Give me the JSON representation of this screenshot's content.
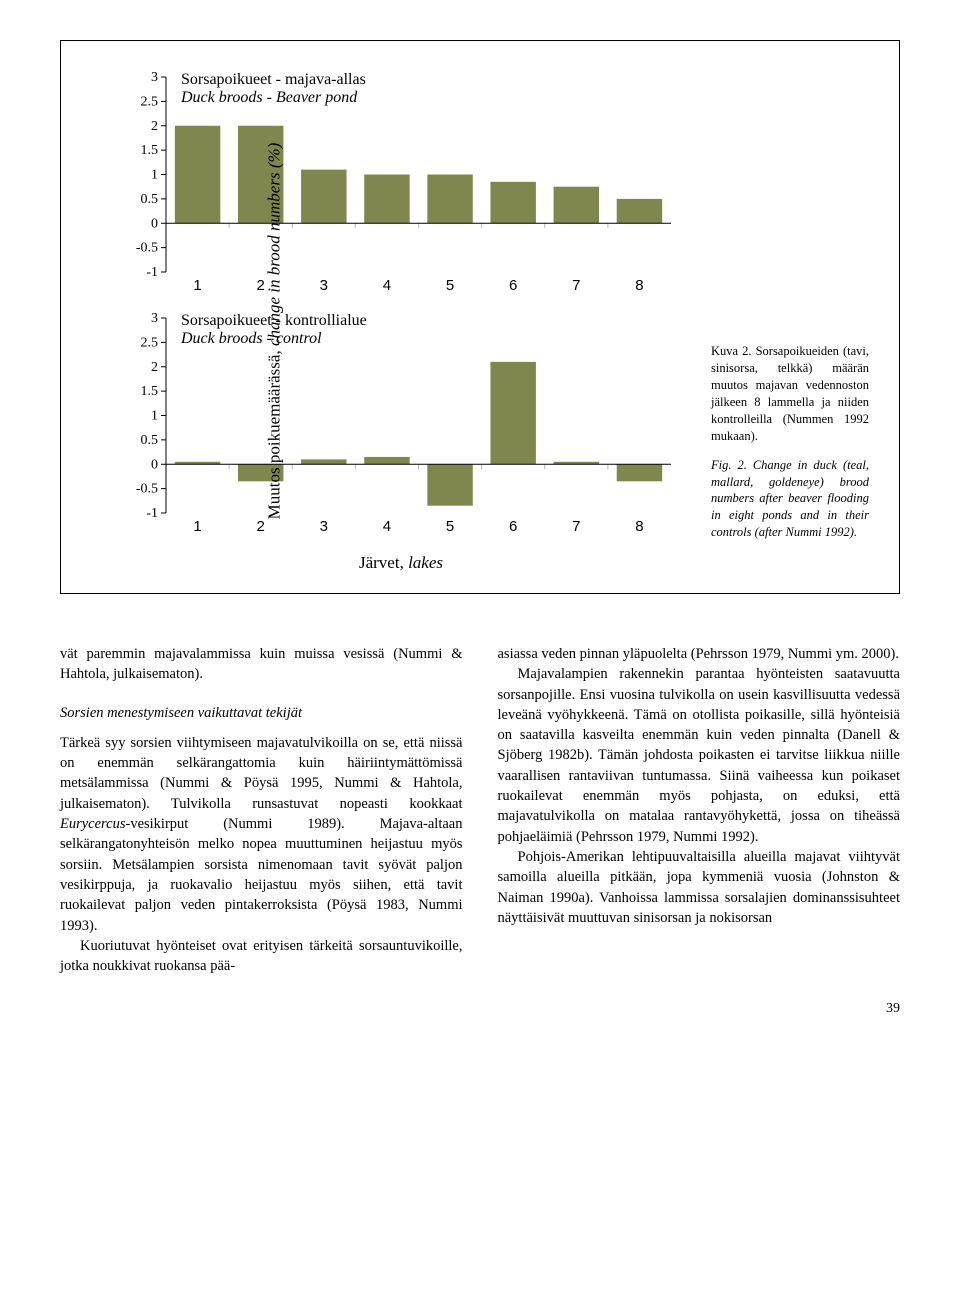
{
  "figure": {
    "ylabel_fi": "Muutos poikuemäärässä, ",
    "ylabel_en": "change in brood numbers (%)",
    "xlabel_fi": "Järvet, ",
    "xlabel_en": "lakes",
    "chart1": {
      "title_fi": "Sorsapoikueet - majava-allas",
      "title_en": "Duck broods - Beaver pond",
      "categories": [
        "1",
        "2",
        "3",
        "4",
        "5",
        "6",
        "7",
        "8"
      ],
      "values": [
        2.0,
        2.0,
        1.1,
        1.0,
        1.0,
        0.85,
        0.75,
        0.5
      ],
      "ylim": [
        -1,
        3
      ],
      "ytick_step": 0.5,
      "bar_color": "#7f874f",
      "axis_color": "#000000",
      "grid_color": "#b9b9b9",
      "background_color": "#ffffff"
    },
    "chart2": {
      "title_fi": "Sorsapoikueet - kontrollialue",
      "title_en": "Duck broods - control",
      "categories": [
        "1",
        "2",
        "3",
        "4",
        "5",
        "6",
        "7",
        "8"
      ],
      "values": [
        0.05,
        -0.35,
        0.1,
        0.15,
        -0.85,
        2.1,
        0.05,
        -0.35
      ],
      "ylim": [
        -1,
        3
      ],
      "ytick_step": 0.5,
      "bar_color": "#7f874f",
      "axis_color": "#000000",
      "grid_color": "#b9b9b9",
      "background_color": "#ffffff"
    },
    "caption_fi": "Kuva 2. Sorsapoikueiden (tavi, sinisorsa, telkkä) määrän muutos majavan vedennoston jälkeen 8 lammella ja niiden kontrolleilla (Nummen 1992 mukaan).",
    "caption_en": "Fig. 2. Change in duck (teal, mallard, goldeneye) brood numbers after beaver flooding in eight ponds and in their controls (after Nummi 1992)."
  },
  "text": {
    "col1": {
      "p1": "vät paremmin majavalammissa kuin muissa vesissä (Nummi & Hahtola, julkaisematon).",
      "subhead": "Sorsien menestymiseen vaikuttavat tekijät",
      "p2": "Tärkeä syy sorsien viihtymiseen majavatulvikoilla on se, että niissä on enemmän selkärangattomia kuin häiriintymättömissä metsälammissa (Nummi & Pöysä 1995, Nummi & Hahtola, julkaisematon). Tulvikolla runsastuvat nopeasti kookkaat Eurycercus-vesikirput (Nummi 1989). Majava-altaan selkärangatonyhteisön melko nopea muuttuminen heijastuu myös sorsiin. Metsälampien sorsista nimenomaan tavit syövät paljon vesikirppuja, ja ruokavalio heijastuu myös siihen, että tavit ruokailevat paljon veden pintakerroksista (Pöysä 1983, Nummi 1993).",
      "p3": "Kuoriutuvat hyönteiset ovat erityisen tärkeitä sorsauntuvikoille, jotka noukkivat ruokansa pää-"
    },
    "col2": {
      "p1": "asiassa veden pinnan yläpuolelta (Pehrsson 1979, Nummi ym. 2000).",
      "p2": "Majavalampien rakennekin parantaa hyönteisten saatavuutta sorsanpojille. Ensi vuosina tulvikolla on usein kasvillisuutta vedessä leveänä vyöhykkeenä. Tämä on otollista poikasille, sillä hyönteisiä on saatavilla kasveilta enemmän kuin veden pinnalta (Danell & Sjöberg 1982b). Tämän johdosta poikasten ei tarvitse liikkua niille vaarallisen rantaviivan tuntumassa. Siinä vaiheessa kun poikaset ruokailevat enemmän myös pohjasta, on eduksi, että majavatulvikolla on matalaa rantavyöhykettä, jossa on tiheässä pohjaeläimiä (Pehrsson 1979, Nummi 1992).",
      "p3": "Pohjois-Amerikan lehtipuuvaltaisilla alueilla majavat viihtyvät samoilla alueilla pitkään, jopa kymmeniä vuosia (Johnston & Naiman 1990a). Vanhoissa lammissa sorsalajien dominanssisuhteet näyttäisivät muuttuvan sinisorsan ja nokisorsan"
    }
  },
  "pagenum": "39"
}
